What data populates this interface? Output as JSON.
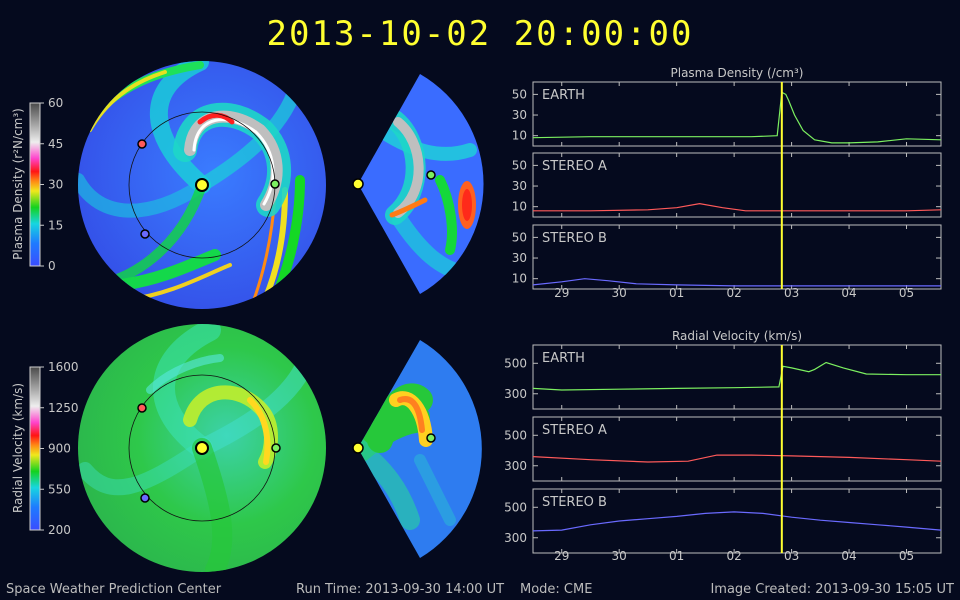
{
  "header": {
    "datetime": "2013-10-02 20:00:00"
  },
  "footer": {
    "organization": "Space Weather Prediction Center",
    "run_time": "Run Time: 2013-09-30 14:00 UT",
    "mode": "Mode: CME",
    "image_created": "Image Created: 2013-09-30 15:05 UT"
  },
  "colors": {
    "title": "#ffff30",
    "earth": "#7cf060",
    "stereo_a": "#ff5a5a",
    "stereo_b": "#6a6aff",
    "time_marker": "#ffff30",
    "background": "#050a1e"
  },
  "colorbars": {
    "density": {
      "label": "Plasma Density (r²N/cm³)",
      "ticks": [
        "60",
        "45",
        "30",
        "15",
        "0"
      ]
    },
    "velocity": {
      "label": "Radial Velocity (km/s)",
      "ticks": [
        "1600",
        "1250",
        "900",
        "550",
        "200"
      ]
    }
  },
  "maps": {
    "markers": [
      {
        "name": "Sun",
        "color": "#ffff30"
      },
      {
        "name": "EARTH",
        "color": "#7cf060"
      },
      {
        "name": "STEREO A",
        "color": "#ff5a5a"
      },
      {
        "name": "STEREO B",
        "color": "#6a6aff"
      }
    ]
  },
  "chart_data": [
    {
      "type": "line",
      "title": "Plasma Density (/cm³)",
      "x_tick_labels": [
        "29",
        "30",
        "01",
        "02",
        "03",
        "04",
        "05"
      ],
      "xlim": [
        28.5,
        35.6
      ],
      "time_marker_x": 32.83,
      "panels": [
        {
          "name": "EARTH",
          "y_ticks": [
            10,
            30,
            50
          ],
          "ylim": [
            0,
            62
          ],
          "x": [
            28.5,
            29.5,
            30.5,
            31.5,
            32.3,
            32.75,
            32.83,
            32.9,
            32.95,
            33.05,
            33.2,
            33.4,
            33.7,
            34.0,
            34.5,
            35.0,
            35.6
          ],
          "values": [
            8,
            9,
            9,
            9,
            9,
            10,
            52,
            50,
            44,
            30,
            15,
            6,
            3,
            3,
            4,
            7,
            6
          ]
        },
        {
          "name": "STEREO A",
          "y_ticks": [
            10,
            30,
            50
          ],
          "ylim": [
            0,
            62
          ],
          "x": [
            28.5,
            29.5,
            30.5,
            31.0,
            31.4,
            31.8,
            32.2,
            33.0,
            34.0,
            35.0,
            35.6
          ],
          "values": [
            6,
            6,
            7,
            9,
            13,
            9,
            6,
            6,
            6,
            6,
            7
          ]
        },
        {
          "name": "STEREO B",
          "y_ticks": [
            10,
            30,
            50
          ],
          "ylim": [
            0,
            62
          ],
          "x": [
            28.5,
            29.0,
            29.4,
            29.8,
            30.3,
            31.0,
            32.0,
            33.0,
            34.0,
            35.0,
            35.6
          ],
          "values": [
            4,
            7,
            10,
            8,
            5,
            4,
            3,
            3,
            3,
            3,
            3
          ]
        }
      ]
    },
    {
      "type": "line",
      "title": "Radial Velocity (km/s)",
      "x_tick_labels": [
        "29",
        "30",
        "01",
        "02",
        "03",
        "04",
        "05"
      ],
      "xlim": [
        28.5,
        35.6
      ],
      "time_marker_x": 32.83,
      "panels": [
        {
          "name": "EARTH",
          "y_ticks": [
            300,
            500
          ],
          "ylim": [
            200,
            620
          ],
          "x": [
            28.5,
            29.0,
            30.0,
            31.0,
            32.0,
            32.78,
            32.85,
            33.0,
            33.3,
            33.4,
            33.6,
            33.9,
            34.3,
            35.0,
            35.6
          ],
          "values": [
            335,
            325,
            330,
            335,
            340,
            345,
            480,
            470,
            445,
            460,
            505,
            470,
            430,
            425,
            425
          ]
        },
        {
          "name": "STEREO A",
          "y_ticks": [
            300,
            500
          ],
          "ylim": [
            200,
            620
          ],
          "x": [
            28.5,
            29.5,
            30.5,
            31.2,
            31.7,
            32.3,
            33.0,
            34.0,
            35.0,
            35.6
          ],
          "values": [
            360,
            340,
            325,
            330,
            370,
            370,
            365,
            355,
            340,
            330
          ]
        },
        {
          "name": "STEREO B",
          "y_ticks": [
            300,
            500
          ],
          "ylim": [
            200,
            620
          ],
          "x": [
            28.5,
            29.0,
            29.5,
            30.0,
            30.5,
            31.0,
            31.5,
            32.0,
            32.5,
            33.0,
            33.5,
            34.0,
            34.5,
            35.0,
            35.6
          ],
          "values": [
            345,
            350,
            385,
            410,
            425,
            440,
            460,
            470,
            460,
            435,
            415,
            400,
            385,
            370,
            350
          ]
        }
      ]
    }
  ]
}
